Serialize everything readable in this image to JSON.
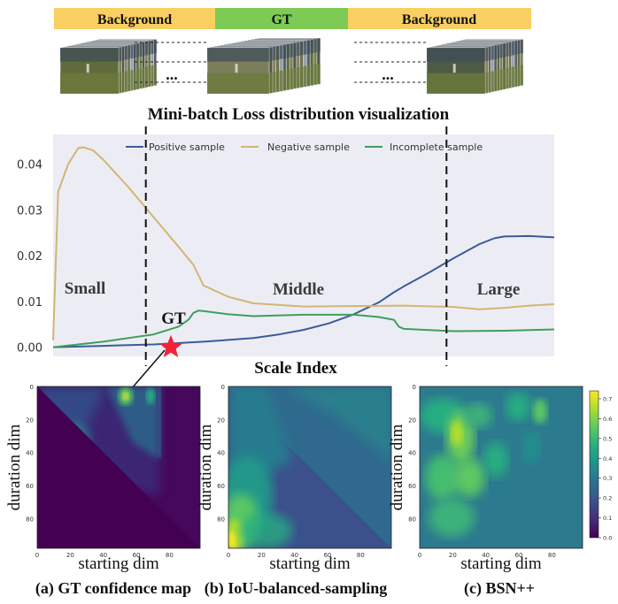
{
  "top_bar": {
    "left_label": "Background",
    "center_label": "GT",
    "right_label": "Background",
    "colors": {
      "background": "#F9CF62",
      "gt": "#7DCB55"
    }
  },
  "ellipsis": "...",
  "main_title": "Mini-batch Loss distribution visualization",
  "line_chart": {
    "chart_data": {
      "type": "line",
      "xlabel": "Scale Index",
      "ylabel": "",
      "xlim": [
        0,
        100
      ],
      "ylim": [
        -0.002,
        0.0465
      ],
      "yticks": [
        "0.00",
        "0.01",
        "0.02",
        "0.03",
        "0.04"
      ],
      "ytick_values": [
        0.0,
        0.01,
        0.02,
        0.03,
        0.04
      ],
      "legend_position": "top",
      "grid": false,
      "series": [
        {
          "name": "Positive sample",
          "color": "#3A5C9A",
          "x": [
            0,
            10,
            20,
            30,
            40,
            45,
            50,
            55,
            60,
            65,
            68,
            70,
            75,
            80,
            85,
            88,
            90,
            95,
            100
          ],
          "y": [
            0.0,
            0.0003,
            0.0006,
            0.0012,
            0.002,
            0.0028,
            0.0038,
            0.0052,
            0.0072,
            0.0098,
            0.012,
            0.0133,
            0.0163,
            0.0195,
            0.0225,
            0.0238,
            0.0242,
            0.0243,
            0.024
          ]
        },
        {
          "name": "Negative sample",
          "color": "#D2B574",
          "x": [
            0,
            1,
            3,
            5,
            6,
            8,
            10,
            15,
            20,
            25,
            28,
            30,
            35,
            40,
            50,
            60,
            70,
            80,
            85,
            90,
            95,
            100
          ],
          "y": [
            0.0015,
            0.034,
            0.04,
            0.0435,
            0.0437,
            0.043,
            0.041,
            0.035,
            0.0285,
            0.022,
            0.018,
            0.0135,
            0.011,
            0.0096,
            0.0089,
            0.009,
            0.0091,
            0.0088,
            0.0083,
            0.0086,
            0.0091,
            0.0094
          ]
        },
        {
          "name": "Incomplete sample",
          "color": "#3F9E5E",
          "x": [
            0,
            10,
            20,
            25,
            27,
            28,
            29,
            30,
            35,
            40,
            50,
            60,
            65,
            68,
            69,
            70,
            80,
            90,
            100
          ],
          "y": [
            0.0,
            0.0012,
            0.0028,
            0.0045,
            0.006,
            0.0075,
            0.008,
            0.0079,
            0.0072,
            0.0068,
            0.0071,
            0.0071,
            0.0066,
            0.006,
            0.0045,
            0.004,
            0.0035,
            0.0036,
            0.0039
          ]
        }
      ]
    },
    "region_labels": {
      "small": "Small",
      "middle": "Middle",
      "large": "Large"
    },
    "gt_label": "GT",
    "divider_x": [
      18.5,
      78.5
    ],
    "star_x": 23.5,
    "star_y": 0.0
  },
  "heatmaps": [
    {
      "caption": "(a) GT confidence map",
      "xlabel": "starting dim",
      "ylabel": "duration dim",
      "xticks": [
        "0",
        "20",
        "40",
        "60",
        "80"
      ],
      "yticks": [
        "0",
        "20",
        "40",
        "60",
        "80"
      ]
    },
    {
      "caption": "(b) IoU-balanced-sampling",
      "xlabel": "starting dim",
      "ylabel": "duration dim",
      "xticks": [
        "0",
        "20",
        "40",
        "60",
        "80"
      ],
      "yticks": [
        "0",
        "20",
        "40",
        "60",
        "80"
      ]
    },
    {
      "caption": "(c) BSN++",
      "xlabel": "starting dim",
      "ylabel": "duration dim",
      "xticks": [
        "0",
        "20",
        "40",
        "60",
        "80"
      ],
      "yticks": [
        "0",
        "20",
        "40",
        "60",
        "80"
      ]
    }
  ],
  "colorbar": {
    "ticks": [
      "0.0",
      "0.1",
      "0.2",
      "0.3",
      "0.4",
      "0.5",
      "0.6",
      "0.7"
    ],
    "tick_values": [
      0.0,
      0.1,
      0.2,
      0.3,
      0.4,
      0.5,
      0.6,
      0.7
    ],
    "max": 0.74
  },
  "colors": {
    "heatmap_bg": "#440154",
    "viridis": [
      "#440154",
      "#472c7a",
      "#3b518b",
      "#2c718e",
      "#21908d",
      "#27ad81",
      "#5cc863",
      "#aadc32",
      "#fde725"
    ]
  }
}
